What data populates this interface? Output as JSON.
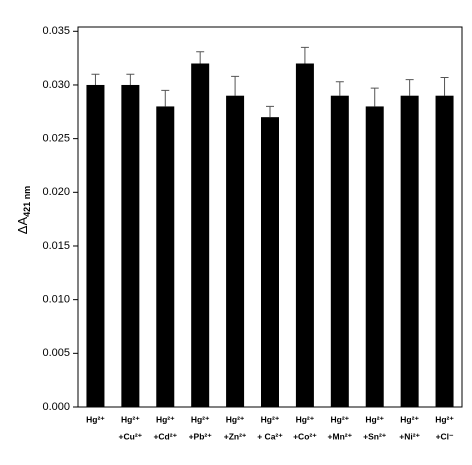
{
  "chart_data": {
    "type": "bar",
    "y_label": [
      "ΔA",
      "421 nm"
    ],
    "categories": [
      [
        "Hg²⁺"
      ],
      [
        "Hg²⁺",
        "+Cu²⁺"
      ],
      [
        "Hg²⁺",
        "+Cd²⁺"
      ],
      [
        "Hg²⁺",
        "+Pb²⁺"
      ],
      [
        "Hg²⁺",
        "+Zn²⁺"
      ],
      [
        "Hg²⁺",
        "+ Ca²⁺"
      ],
      [
        "Hg²⁺",
        "+Co²⁺"
      ],
      [
        "Hg²⁺",
        "+Mn²⁺"
      ],
      [
        "Hg²⁺",
        "+Sn²⁺"
      ],
      [
        "Hg²⁺",
        "+Ni²⁺"
      ],
      [
        "Hg²⁺",
        "+Cl⁻"
      ]
    ],
    "values": [
      0.03,
      0.03,
      0.028,
      0.032,
      0.029,
      0.027,
      0.032,
      0.029,
      0.028,
      0.029,
      0.029
    ],
    "errors": [
      0.001,
      0.001,
      0.0015,
      0.0011,
      0.0018,
      0.001,
      0.0015,
      0.0013,
      0.0017,
      0.0015,
      0.0017
    ],
    "color": "#000000",
    "ylim": [
      0,
      0.0354
    ],
    "yticks": [
      {
        "value": 0,
        "label": "0.000"
      },
      {
        "value": 0.005,
        "label": "0.005"
      },
      {
        "value": 0.01,
        "label": "0.010"
      },
      {
        "value": 0.015,
        "label": "0.015"
      },
      {
        "value": 0.02,
        "label": "0.020"
      },
      {
        "value": 0.025,
        "label": "0.025"
      },
      {
        "value": 0.03,
        "label": "0.030"
      },
      {
        "value": 0.035,
        "label": "0.035"
      }
    ],
    "grid": false
  }
}
